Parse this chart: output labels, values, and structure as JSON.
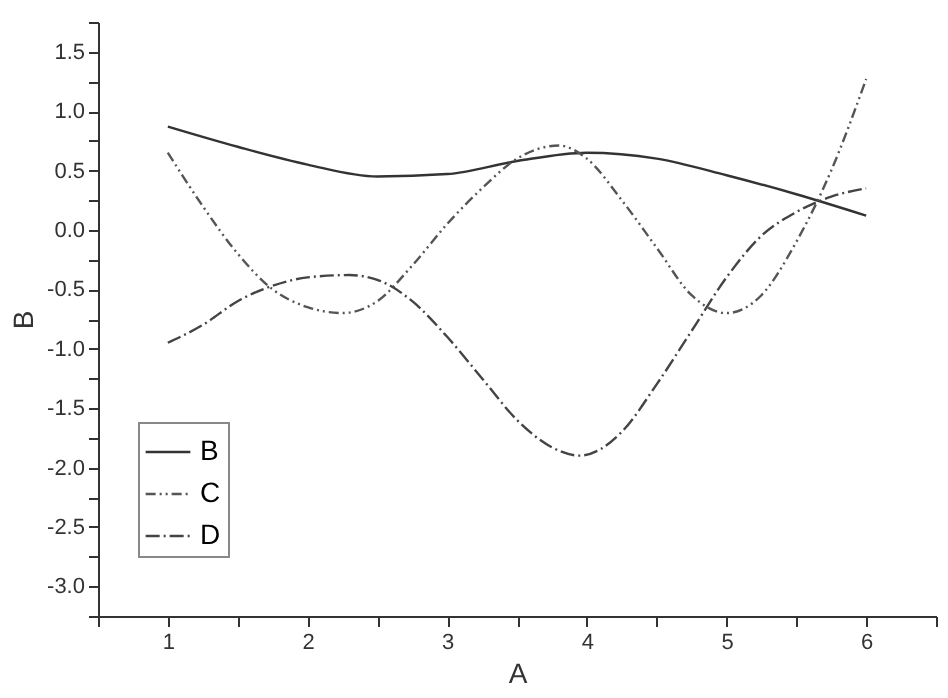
{
  "chart_data": {
    "type": "line",
    "xlabel": "A",
    "ylabel": "B",
    "xlim": [
      0.5,
      6.5
    ],
    "ylim": [
      -3.25,
      1.75
    ],
    "xticks": [
      {
        "value": 0.5,
        "label": null
      },
      1,
      {
        "value": 1.5,
        "label": null
      },
      2,
      {
        "value": 2.5,
        "label": null
      },
      3,
      {
        "value": 3.5,
        "label": null
      },
      4,
      {
        "value": 4.5,
        "label": null
      },
      5,
      {
        "value": 5.5,
        "label": null
      },
      6,
      {
        "value": 6.5,
        "label": null
      }
    ],
    "yticks": [
      {
        "value": -3.25,
        "label": null
      },
      {
        "value": -3,
        "label": "-3.0"
      },
      {
        "value": -2.75,
        "label": null
      },
      -2.5,
      {
        "value": -2.25,
        "label": null
      },
      {
        "value": -2,
        "label": "-2.0"
      },
      {
        "value": -1.75,
        "label": null
      },
      -1.5,
      {
        "value": -1.25,
        "label": null
      },
      {
        "value": -1,
        "label": "-1.0"
      },
      {
        "value": -0.75,
        "label": null
      },
      -0.5,
      {
        "value": -0.25,
        "label": null
      },
      {
        "value": 0,
        "label": "0.0"
      },
      {
        "value": 0.25,
        "label": null
      },
      0.5,
      {
        "value": 0.75,
        "label": null
      },
      {
        "value": 1,
        "label": "1.0"
      },
      {
        "value": 1.25,
        "label": null
      },
      1.5,
      {
        "value": 1.75,
        "label": null
      }
    ],
    "grid": false,
    "legend": "left",
    "marker": "none",
    "series": [
      {
        "name": "B",
        "color": "#333333",
        "line_style": "solid",
        "x": [
          1,
          1.5,
          2,
          2.5,
          3,
          3.5,
          4,
          4.5,
          5,
          5.5,
          6
        ],
        "values": [
          0.87,
          0.7,
          0.55,
          0.45,
          0.47,
          0.58,
          0.65,
          0.6,
          0.46,
          0.3,
          0.12
        ]
      },
      {
        "name": "C",
        "color": "#555555",
        "line_style": "dotted",
        "x": [
          1,
          1.25,
          1.5,
          1.75,
          2,
          2.25,
          2.5,
          2.75,
          3,
          3.25,
          3.5,
          3.8,
          4,
          4.25,
          4.5,
          4.75,
          5,
          5.25,
          5.5,
          5.75,
          6
        ],
        "values": [
          0.65,
          0.2,
          -0.2,
          -0.5,
          -0.65,
          -0.7,
          -0.6,
          -0.3,
          0.05,
          0.35,
          0.6,
          0.71,
          0.6,
          0.25,
          -0.15,
          -0.55,
          -0.7,
          -0.55,
          -0.1,
          0.5,
          1.27
        ]
      },
      {
        "name": "D",
        "color": "#444444",
        "line_style": "dashed",
        "x": [
          1,
          1.25,
          1.5,
          1.75,
          2,
          2.3,
          2.5,
          2.75,
          3,
          3.25,
          3.5,
          3.75,
          3.95,
          4.25,
          4.5,
          4.75,
          5,
          5.25,
          5.5,
          5.75,
          6
        ],
        "values": [
          -0.95,
          -0.8,
          -0.6,
          -0.47,
          -0.4,
          -0.38,
          -0.42,
          -0.6,
          -0.9,
          -1.25,
          -1.6,
          -1.83,
          -1.9,
          -1.7,
          -1.3,
          -0.85,
          -0.4,
          -0.05,
          0.15,
          0.28,
          0.35
        ]
      }
    ]
  }
}
